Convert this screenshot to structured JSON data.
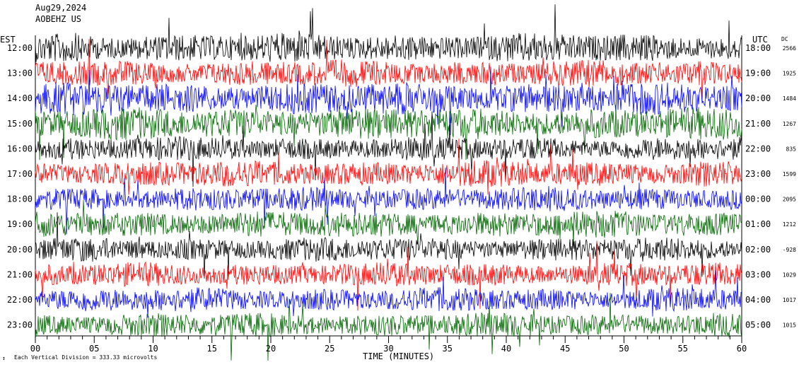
{
  "header": {
    "date": "Aug29,2024",
    "station": "AOBEHZ US"
  },
  "axes": {
    "left_unit": "EST",
    "right_unit": "UTC",
    "dc_header": "DC",
    "xlabel": "TIME (MINUTES)",
    "scale_note": "Each Vertical Division = 333.33 microvolts"
  },
  "chart_data": {
    "type": "line",
    "title": "",
    "xlabel": "TIME (MINUTES)",
    "xlim": [
      0,
      60
    ],
    "x_ticks": [
      "00",
      "05",
      "10",
      "15",
      "20",
      "25",
      "30",
      "35",
      "40",
      "45",
      "50",
      "55",
      "60"
    ],
    "grid": false,
    "series_colors": [
      "#000000",
      "#ff0000",
      "#0000ff",
      "#006600"
    ],
    "rows": [
      {
        "est": "12:00",
        "utc": "18:00",
        "dc": "2566",
        "color": "#000000",
        "amp": 22,
        "full": true
      },
      {
        "est": "13:00",
        "utc": "19:00",
        "dc": "1925",
        "color": "#ff0000",
        "amp": 20,
        "full": true
      },
      {
        "est": "14:00",
        "utc": "20:00",
        "dc": "1484",
        "color": "#0000ff",
        "amp": 24,
        "full": true
      },
      {
        "est": "15:00",
        "utc": "21:00",
        "dc": "1267",
        "color": "#006600",
        "amp": 24,
        "full": true
      },
      {
        "est": "16:00",
        "utc": "22:00",
        "dc": "835",
        "color": "#000000",
        "amp": 18,
        "full": true
      },
      {
        "est": "17:00",
        "utc": "23:00",
        "dc": "1599",
        "color": "#ff0000",
        "amp": 20,
        "full": true
      },
      {
        "est": "18:00",
        "utc": "00:00",
        "dc": "2095",
        "color": "#0000ff",
        "amp": 18,
        "full": true
      },
      {
        "est": "19:00",
        "utc": "01:00",
        "dc": "1212",
        "color": "#006600",
        "amp": 20,
        "full": true
      },
      {
        "est": "20:00",
        "utc": "02:00",
        "dc": "-928",
        "color": "#000000",
        "amp": 18,
        "full": true
      },
      {
        "est": "21:00",
        "utc": "03:00",
        "dc": "1029",
        "color": "#ff0000",
        "amp": 18,
        "full": true
      },
      {
        "est": "22:00",
        "utc": "04:00",
        "dc": "1017",
        "color": "#0000ff",
        "amp": 18,
        "full": true
      },
      {
        "est": "23:00",
        "utc": "05:00",
        "dc": "1015",
        "color": "#006600",
        "amp": 18,
        "full": true
      }
    ]
  }
}
